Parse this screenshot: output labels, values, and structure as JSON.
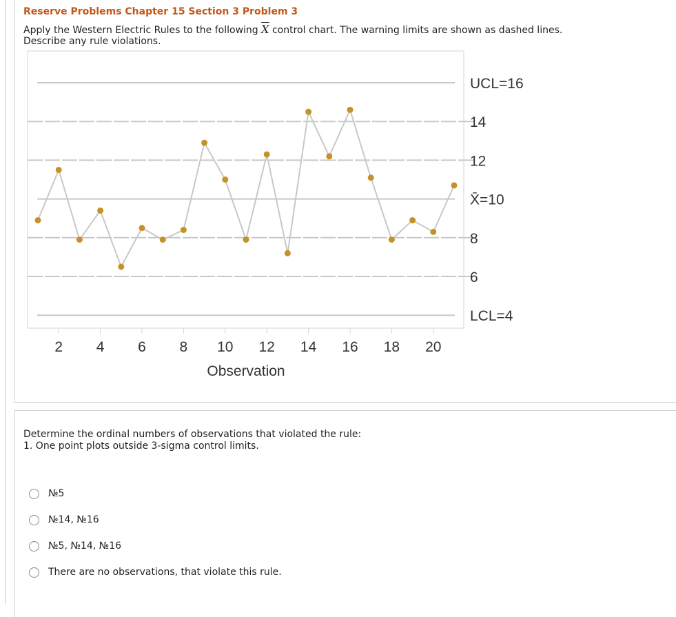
{
  "header": {
    "title": "Reserve Problems Chapter 15 Section 3 Problem 3",
    "instruction_part1": "Apply the Western Electric Rules to the following ",
    "instruction_symbol": "X",
    "instruction_part2": " control chart. The warning limits are shown as dashed lines.",
    "instruction_line2": "Describe any rule violations."
  },
  "chart_data": {
    "type": "line",
    "xlabel": "Observation",
    "x": [
      1,
      2,
      3,
      4,
      5,
      6,
      7,
      8,
      9,
      10,
      11,
      12,
      13,
      14,
      15,
      16,
      17,
      18,
      19,
      20,
      21
    ],
    "values": [
      8.9,
      11.5,
      7.9,
      9.4,
      6.5,
      8.5,
      7.9,
      8.4,
      12.9,
      11.0,
      7.9,
      12.3,
      7.2,
      14.5,
      12.2,
      14.6,
      11.1,
      7.9,
      8.9,
      8.3,
      10.7
    ],
    "xticks": [
      2,
      4,
      6,
      8,
      10,
      12,
      14,
      16,
      18,
      20
    ],
    "xlim": [
      1,
      21
    ],
    "ylim": [
      3.5,
      17.8
    ],
    "limit_lines": [
      {
        "label": "UCL=16",
        "value": 16,
        "style": "solid"
      },
      {
        "label": "14",
        "value": 14,
        "style": "dashed"
      },
      {
        "label": "12",
        "value": 12,
        "style": "dashed"
      },
      {
        "label": "X̄=10",
        "value": 10,
        "style": "solid"
      },
      {
        "label": "8",
        "value": 8,
        "style": "dashed"
      },
      {
        "label": "6",
        "value": 6,
        "style": "dashed"
      },
      {
        "label": "LCL=4",
        "value": 4,
        "style": "solid"
      }
    ],
    "colors": {
      "line": "#c8c8c8",
      "point": "#c49328",
      "limit": "#c8c8c8",
      "frame": "#d6d6d6",
      "text": "#333333"
    }
  },
  "question": {
    "line1": "Determine the ordinal numbers of observations that violated the rule:",
    "line2": "1. One point plots outside 3-sigma control limits."
  },
  "options": [
    {
      "label": "№5"
    },
    {
      "label": "№14, №16"
    },
    {
      "label": "№5, №14, №16"
    },
    {
      "label": "There are no observations, that violate this rule."
    }
  ]
}
